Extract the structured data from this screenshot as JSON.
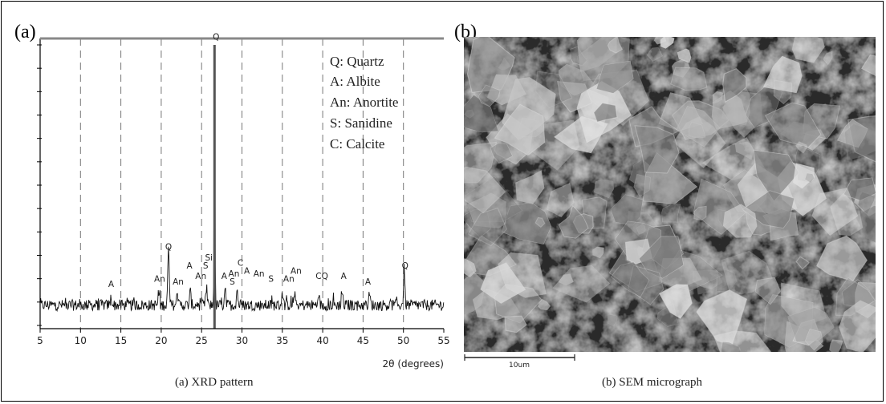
{
  "panel_a_label": "(a)",
  "panel_b_label": "(b)",
  "caption_a": "(a) XRD pattern",
  "caption_b": "(b) SEM micrograph",
  "scale_bar_label": "10um",
  "chart_data": {
    "type": "line",
    "title": "",
    "xlabel": "2θ (degrees)",
    "ylabel": "",
    "xlim": [
      5,
      55
    ],
    "xticks": [
      5,
      10,
      15,
      20,
      25,
      30,
      35,
      40,
      45,
      50,
      55
    ],
    "grid": "vertical dashed",
    "legend": {
      "placement": "top-right",
      "entries": [
        {
          "key": "Q",
          "text": ": Quartz"
        },
        {
          "key": "A",
          "text": ": Albite"
        },
        {
          "key": "An",
          "text": ": Anortite"
        },
        {
          "key": "S",
          "text": ": Sanidine"
        },
        {
          "key": "C",
          "text": ": Calcite"
        }
      ]
    },
    "peaks": [
      {
        "x": 26.6,
        "y": 100
      },
      {
        "x": 20.9,
        "y": 21
      },
      {
        "x": 50.1,
        "y": 14
      },
      {
        "x": 27.9,
        "y": 7
      },
      {
        "x": 25.6,
        "y": 6
      },
      {
        "x": 29.4,
        "y": 6
      },
      {
        "x": 36.5,
        "y": 5
      },
      {
        "x": 22.0,
        "y": 5
      },
      {
        "x": 42.4,
        "y": 5
      },
      {
        "x": 39.5,
        "y": 5
      },
      {
        "x": 35.0,
        "y": 5
      },
      {
        "x": 45.8,
        "y": 4
      },
      {
        "x": 23.6,
        "y": 5
      },
      {
        "x": 19.7,
        "y": 4
      },
      {
        "x": 13.8,
        "y": 3
      }
    ],
    "annotations": [
      {
        "label": "Q",
        "x": 26.8,
        "y": 102
      },
      {
        "label": "Q",
        "x": 20.9,
        "y": 23
      },
      {
        "label": "Q",
        "x": 50.2,
        "y": 16
      },
      {
        "label": "Si",
        "x": 25.9,
        "y": 19
      },
      {
        "label": "S",
        "x": 25.5,
        "y": 16
      },
      {
        "label": "A",
        "x": 23.5,
        "y": 16
      },
      {
        "label": "An",
        "x": 24.9,
        "y": 12
      },
      {
        "label": "An",
        "x": 19.8,
        "y": 11
      },
      {
        "label": "An",
        "x": 22.1,
        "y": 10
      },
      {
        "label": "A",
        "x": 13.8,
        "y": 9
      },
      {
        "label": "C",
        "x": 29.8,
        "y": 17
      },
      {
        "label": "A",
        "x": 30.6,
        "y": 14
      },
      {
        "label": "An",
        "x": 29.0,
        "y": 13
      },
      {
        "label": "An",
        "x": 32.1,
        "y": 13
      },
      {
        "label": "A",
        "x": 27.8,
        "y": 12
      },
      {
        "label": "S",
        "x": 28.8,
        "y": 10
      },
      {
        "label": "S",
        "x": 33.6,
        "y": 11
      },
      {
        "label": "An",
        "x": 36.7,
        "y": 14
      },
      {
        "label": "An",
        "x": 35.8,
        "y": 11
      },
      {
        "label": "CQ",
        "x": 39.9,
        "y": 12
      },
      {
        "label": "A",
        "x": 42.6,
        "y": 12
      },
      {
        "label": "A",
        "x": 45.6,
        "y": 10
      }
    ]
  }
}
